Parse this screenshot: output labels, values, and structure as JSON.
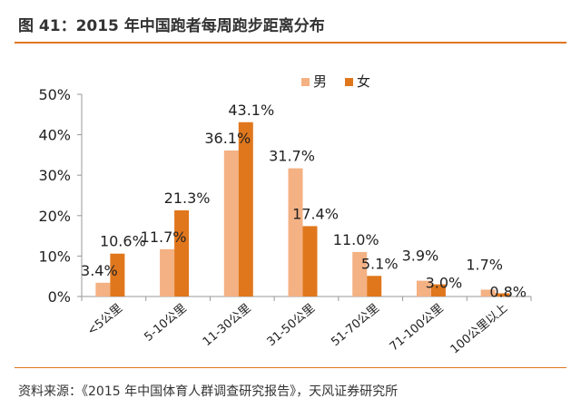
{
  "figure": {
    "title": "图 41：2015 年中国跑者每周跑步距离分布",
    "source": "资料来源：《2015 年中国体育人群调查研究报告》，天风证券研究所"
  },
  "chart_data": {
    "type": "bar",
    "categories": [
      "<5公里",
      "5-10公里",
      "11-30公里",
      "31-50公里",
      "51-70公里",
      "71-100公里",
      "100公里以上"
    ],
    "series": [
      {
        "name": "男",
        "values": [
          3.4,
          11.7,
          36.1,
          31.7,
          11.0,
          3.9,
          1.7
        ],
        "labels": [
          "3.4%",
          "11.7%",
          "36.1%",
          "31.7%",
          "11.0%",
          "3.9%",
          "1.7%"
        ],
        "color": "#f4b183"
      },
      {
        "name": "女",
        "values": [
          10.6,
          21.3,
          43.1,
          17.4,
          5.1,
          3.0,
          0.8
        ],
        "labels": [
          "10.6%",
          "21.3%",
          "43.1%",
          "17.4%",
          "5.1%",
          "3.0%",
          "0.8%"
        ],
        "color": "#e0771d"
      }
    ],
    "yticks": [
      "0%",
      "10%",
      "20%",
      "30%",
      "40%",
      "50%"
    ],
    "ylim": [
      0,
      50
    ],
    "grid": false,
    "legend": "top-center"
  }
}
